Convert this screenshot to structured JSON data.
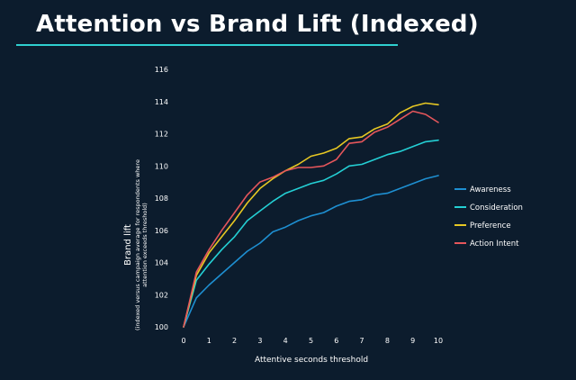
{
  "header": {
    "title": "Attention vs Brand Lift (Indexed)"
  },
  "colors": {
    "background": "#0c1c2d",
    "accent": "#2fd0d0"
  },
  "chart_data": {
    "type": "line",
    "title": "Attention vs Brand Lift (Indexed)",
    "xlabel": "Attentive seconds threshold",
    "ylabel": "Brand lift",
    "ylabel_sub_line1": "(indexed versus campaign average for respondents where",
    "ylabel_sub_line2": "attention exceeds threshold)",
    "xlim": [
      0,
      10
    ],
    "ylim": [
      100,
      116
    ],
    "x_ticks": [
      "0",
      "1",
      "2",
      "3",
      "4",
      "5",
      "6",
      "7",
      "8",
      "9",
      "10"
    ],
    "y_ticks": [
      "100",
      "102",
      "104",
      "106",
      "108",
      "110",
      "112",
      "114",
      "116"
    ],
    "x": [
      0,
      0.5,
      1,
      1.5,
      2,
      2.5,
      3,
      3.5,
      4,
      4.5,
      5,
      5.5,
      6,
      6.5,
      7,
      7.5,
      8,
      8.5,
      9,
      9.5,
      10
    ],
    "series": [
      {
        "name": "Awareness",
        "color": "#1e8fd1",
        "values": [
          100,
          101.8,
          102.6,
          103.3,
          104.0,
          104.7,
          105.2,
          105.9,
          106.2,
          106.6,
          106.9,
          107.1,
          107.5,
          107.8,
          107.9,
          108.2,
          108.3,
          108.6,
          108.9,
          109.2,
          109.4
        ]
      },
      {
        "name": "Consideration",
        "color": "#24cfd4",
        "values": [
          100,
          102.9,
          103.9,
          104.8,
          105.6,
          106.6,
          107.2,
          107.8,
          108.3,
          108.6,
          108.9,
          109.1,
          109.5,
          110.0,
          110.1,
          110.4,
          110.7,
          110.9,
          111.2,
          111.5,
          111.6
        ]
      },
      {
        "name": "Preference",
        "color": "#e6c723",
        "values": [
          100,
          103.2,
          104.6,
          105.6,
          106.6,
          107.7,
          108.6,
          109.2,
          109.7,
          110.1,
          110.6,
          110.8,
          111.1,
          111.7,
          111.8,
          112.3,
          112.6,
          113.3,
          113.7,
          113.9,
          113.8
        ]
      },
      {
        "name": "Action Intent",
        "color": "#e5565b",
        "values": [
          100,
          103.4,
          104.8,
          106.0,
          107.1,
          108.2,
          109.0,
          109.3,
          109.7,
          109.9,
          109.9,
          110.0,
          110.4,
          111.4,
          111.5,
          112.1,
          112.4,
          112.9,
          113.4,
          113.2,
          112.7
        ]
      }
    ],
    "legend_position": "right"
  }
}
